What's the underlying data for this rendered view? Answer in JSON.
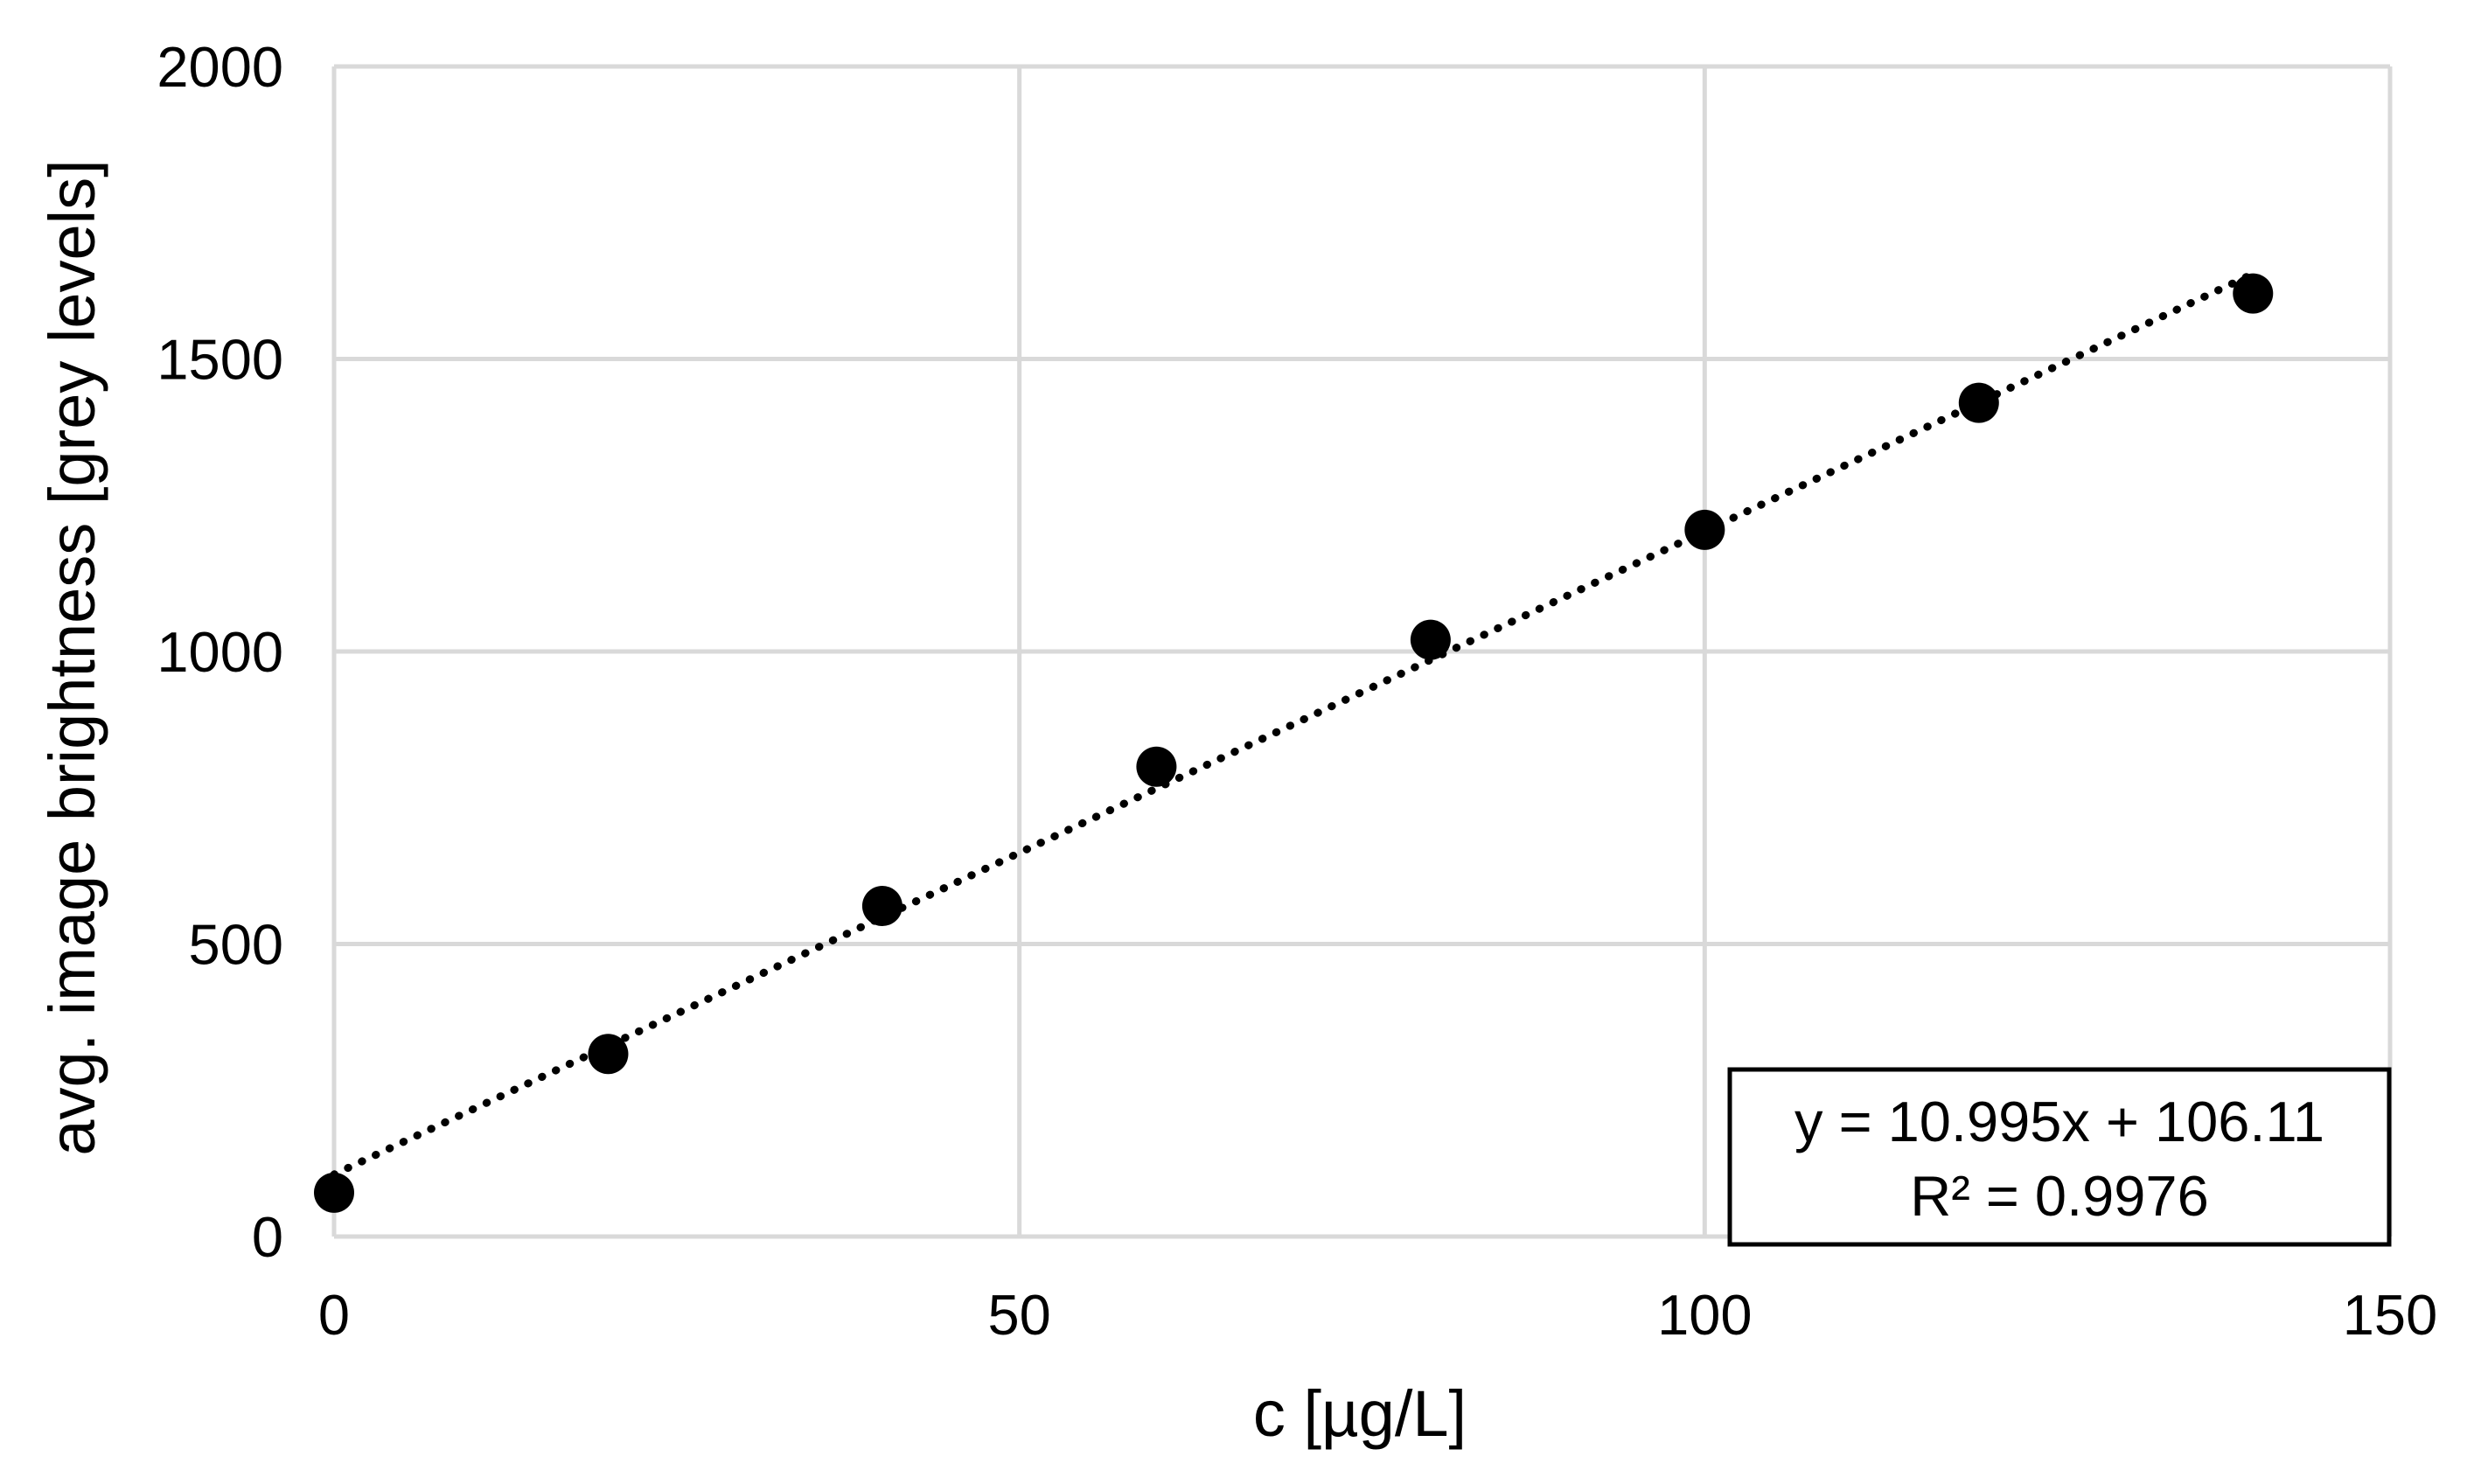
{
  "chart_data": {
    "type": "scatter",
    "xlabel": "c [µg/L]",
    "ylabel": "avg. image brightness [grey levels]",
    "xlim": [
      0,
      150
    ],
    "ylim": [
      0,
      2000
    ],
    "x_ticks": [
      "0",
      "50",
      "100",
      "150"
    ],
    "y_ticks": [
      "0",
      "500",
      "1000",
      "1500",
      "2000"
    ],
    "grid": true,
    "series": [
      {
        "x": [
          0,
          20,
          40,
          60,
          80,
          100,
          120,
          140
        ],
        "y": [
          75,
          312,
          565,
          803,
          1020,
          1208,
          1425,
          1612
        ]
      }
    ],
    "trendline": {
      "type": "linear",
      "style": "dotted",
      "slope": 10.995,
      "intercept": 106.11
    },
    "annotation": {
      "equation": "y = 10.995x + 106.11",
      "r_squared": "R² = 0.9976",
      "placement": "bottom-right"
    },
    "colors": {
      "marker": "#000000",
      "grid": "#d9d9d9",
      "text": "#000000"
    }
  }
}
